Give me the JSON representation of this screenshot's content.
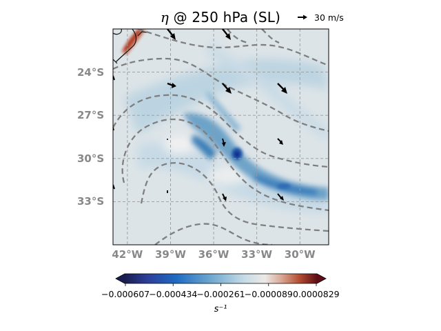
{
  "title": {
    "symbol": "η",
    "rest": " @ 250 hPa (SL)"
  },
  "quiver_key": {
    "label": "30 m/s",
    "arrow_color": "#000000"
  },
  "map": {
    "extent": {
      "lon": [
        -43.0,
        -28.0
      ],
      "lat": [
        -36.0,
        -21.0
      ]
    },
    "gridline_style": "dashed gray",
    "background_color": "#dde4e8",
    "lat_labels": [
      {
        "lat": -24,
        "text": "24°S"
      },
      {
        "lat": -27,
        "text": "27°S"
      },
      {
        "lat": -30,
        "text": "30°S"
      },
      {
        "lat": -33,
        "text": "33°S"
      }
    ],
    "lon_labels": [
      {
        "lon": -42,
        "text": "42°W"
      },
      {
        "lon": -39,
        "text": "39°W"
      },
      {
        "lon": -36,
        "text": "36°W"
      },
      {
        "lon": -33,
        "text": "33°W"
      },
      {
        "lon": -30,
        "text": "30°W"
      }
    ],
    "contour_style": "dashed gray",
    "feature_colors": {
      "negative": "#2a6fb5",
      "strong_negative": "#0d2a8a",
      "positive": "#b0351c"
    }
  },
  "colorbar": {
    "colormap": "diverging dark-navy → blue → light → red → dark-red",
    "colors": [
      "#1a1d4e",
      "#2c3f9a",
      "#1f6bc2",
      "#6fa8cf",
      "#c5dbe6",
      "#ece9e6",
      "#d7a38e",
      "#b24b30",
      "#5e0d14"
    ],
    "extend": "both",
    "tick_labels": [
      "−0.000607",
      "−0.000434",
      "−0.000261",
      "−0.000089",
      "0.0000829"
    ],
    "unit": "s⁻¹"
  }
}
